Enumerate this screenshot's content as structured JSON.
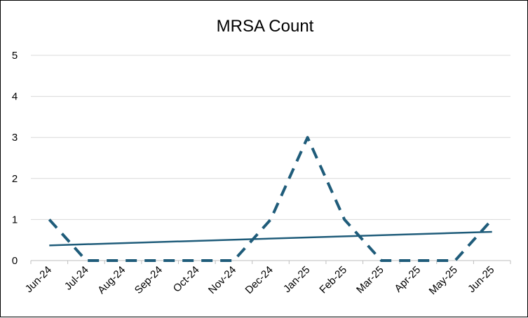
{
  "chart_data": {
    "type": "line",
    "title": "MRSA Count",
    "xlabel": "",
    "ylabel": "",
    "categories": [
      "Jun-24",
      "Jul-24",
      "Aug-24",
      "Sep-24",
      "Oct-24",
      "Nov-24",
      "Dec-24",
      "Jan-25",
      "Feb-25",
      "Mar-25",
      "Apr-25",
      "May-25",
      "Jun-25"
    ],
    "ylim": [
      0,
      5
    ],
    "yticks": [
      0,
      1,
      2,
      3,
      4,
      5
    ],
    "grid": true,
    "series": [
      {
        "name": "MRSA Count",
        "style": "dashed",
        "color": "#1f5c7a",
        "values": [
          1,
          0,
          0,
          0,
          0,
          0,
          1,
          3,
          1,
          0,
          0,
          0,
          1
        ]
      }
    ],
    "trendline": {
      "type": "linear",
      "color": "#1f5c7a",
      "start_value": 0.37,
      "end_value": 0.7
    }
  }
}
